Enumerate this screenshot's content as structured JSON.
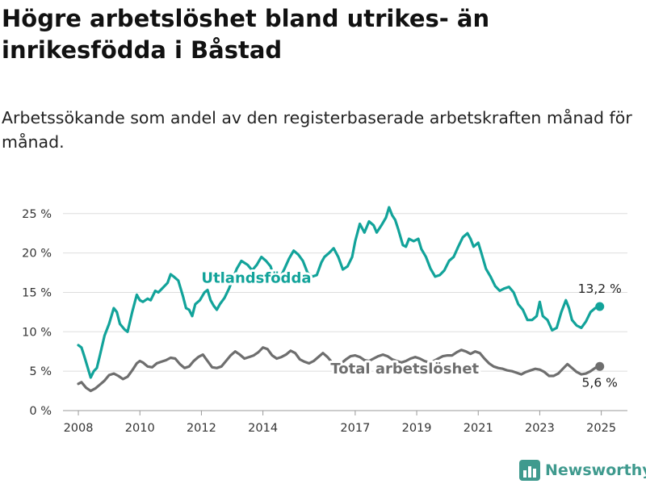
{
  "title": "Högre arbetslöshet bland utrikes- än inrikesfödda i Båstad",
  "subtitle": "Arbetssökande som andel av den registerbaserade arbetskraften månad för månad.",
  "logo_text": "Newsworthy",
  "chart_data": {
    "type": "line",
    "xlim": [
      2007.5,
      2025.85
    ],
    "ylim": [
      0,
      26
    ],
    "yticks": [
      {
        "v": 0,
        "label": "0 %"
      },
      {
        "v": 5,
        "label": "5 %"
      },
      {
        "v": 10,
        "label": "10 %"
      },
      {
        "v": 15,
        "label": "15 %"
      },
      {
        "v": 20,
        "label": "20 %"
      },
      {
        "v": 25,
        "label": "25 %"
      }
    ],
    "xticks": [
      {
        "v": 2008,
        "label": "2008"
      },
      {
        "v": 2010,
        "label": "2010"
      },
      {
        "v": 2012,
        "label": "2012"
      },
      {
        "v": 2014,
        "label": "2014"
      },
      {
        "v": 2017,
        "label": "2017"
      },
      {
        "v": 2019,
        "label": "2019"
      },
      {
        "v": 2021,
        "label": "2021"
      },
      {
        "v": 2023,
        "label": "2023"
      },
      {
        "v": 2025,
        "label": "2025"
      }
    ],
    "grid": true,
    "series": [
      {
        "name": "Utlandsfödda",
        "color": "#12a39a",
        "end_label": "13,2 %",
        "points": [
          [
            2008.0,
            8.3
          ],
          [
            2008.1,
            8.0
          ],
          [
            2008.2,
            6.8
          ],
          [
            2008.3,
            5.5
          ],
          [
            2008.4,
            4.2
          ],
          [
            2008.5,
            5.0
          ],
          [
            2008.6,
            5.4
          ],
          [
            2008.7,
            7.0
          ],
          [
            2008.85,
            9.5
          ],
          [
            2009.0,
            11.0
          ],
          [
            2009.15,
            13.0
          ],
          [
            2009.25,
            12.5
          ],
          [
            2009.35,
            11.0
          ],
          [
            2009.5,
            10.3
          ],
          [
            2009.6,
            10.0
          ],
          [
            2009.75,
            12.5
          ],
          [
            2009.9,
            14.7
          ],
          [
            2010.0,
            14.0
          ],
          [
            2010.1,
            13.8
          ],
          [
            2010.25,
            14.2
          ],
          [
            2010.35,
            14.0
          ],
          [
            2010.5,
            15.2
          ],
          [
            2010.6,
            15.0
          ],
          [
            2010.75,
            15.6
          ],
          [
            2010.9,
            16.2
          ],
          [
            2011.0,
            17.3
          ],
          [
            2011.1,
            17.0
          ],
          [
            2011.25,
            16.5
          ],
          [
            2011.4,
            14.5
          ],
          [
            2011.5,
            13.0
          ],
          [
            2011.6,
            12.8
          ],
          [
            2011.7,
            12.0
          ],
          [
            2011.8,
            13.5
          ],
          [
            2011.95,
            14.0
          ],
          [
            2012.1,
            15.0
          ],
          [
            2012.2,
            15.3
          ],
          [
            2012.3,
            14.0
          ],
          [
            2012.4,
            13.3
          ],
          [
            2012.5,
            12.8
          ],
          [
            2012.6,
            13.5
          ],
          [
            2012.75,
            14.3
          ],
          [
            2012.9,
            15.5
          ],
          [
            2013.0,
            16.5
          ],
          [
            2013.15,
            18.0
          ],
          [
            2013.3,
            19.0
          ],
          [
            2013.5,
            18.5
          ],
          [
            2013.65,
            17.8
          ],
          [
            2013.8,
            18.5
          ],
          [
            2013.95,
            19.5
          ],
          [
            2014.1,
            19.0
          ],
          [
            2014.25,
            18.3
          ],
          [
            2014.4,
            16.5
          ],
          [
            2014.55,
            16.8
          ],
          [
            2014.7,
            18.0
          ],
          [
            2014.85,
            19.3
          ],
          [
            2015.0,
            20.3
          ],
          [
            2015.15,
            19.8
          ],
          [
            2015.3,
            19.0
          ],
          [
            2015.45,
            17.5
          ],
          [
            2015.6,
            17.0
          ],
          [
            2015.75,
            17.2
          ],
          [
            2015.9,
            18.8
          ],
          [
            2016.0,
            19.5
          ],
          [
            2016.15,
            20.0
          ],
          [
            2016.3,
            20.6
          ],
          [
            2016.45,
            19.5
          ],
          [
            2016.6,
            17.9
          ],
          [
            2016.75,
            18.3
          ],
          [
            2016.9,
            19.5
          ],
          [
            2017.0,
            21.5
          ],
          [
            2017.15,
            23.7
          ],
          [
            2017.3,
            22.6
          ],
          [
            2017.45,
            24.0
          ],
          [
            2017.6,
            23.5
          ],
          [
            2017.7,
            22.6
          ],
          [
            2017.85,
            23.5
          ],
          [
            2018.0,
            24.5
          ],
          [
            2018.1,
            25.8
          ],
          [
            2018.2,
            24.8
          ],
          [
            2018.3,
            24.2
          ],
          [
            2018.4,
            23.0
          ],
          [
            2018.55,
            21.0
          ],
          [
            2018.65,
            20.8
          ],
          [
            2018.75,
            21.8
          ],
          [
            2018.9,
            21.5
          ],
          [
            2019.05,
            21.8
          ],
          [
            2019.15,
            20.5
          ],
          [
            2019.3,
            19.5
          ],
          [
            2019.45,
            18.0
          ],
          [
            2019.6,
            17.0
          ],
          [
            2019.75,
            17.2
          ],
          [
            2019.9,
            17.8
          ],
          [
            2020.05,
            19.0
          ],
          [
            2020.2,
            19.5
          ],
          [
            2020.35,
            20.8
          ],
          [
            2020.5,
            22.0
          ],
          [
            2020.65,
            22.5
          ],
          [
            2020.75,
            21.8
          ],
          [
            2020.85,
            20.8
          ],
          [
            2021.0,
            21.3
          ],
          [
            2021.1,
            20.0
          ],
          [
            2021.25,
            18.0
          ],
          [
            2021.4,
            17.0
          ],
          [
            2021.55,
            15.8
          ],
          [
            2021.7,
            15.2
          ],
          [
            2021.85,
            15.5
          ],
          [
            2022.0,
            15.7
          ],
          [
            2022.15,
            15.0
          ],
          [
            2022.3,
            13.5
          ],
          [
            2022.45,
            12.8
          ],
          [
            2022.6,
            11.5
          ],
          [
            2022.75,
            11.5
          ],
          [
            2022.9,
            12.0
          ],
          [
            2023.0,
            13.8
          ],
          [
            2023.1,
            12.0
          ],
          [
            2023.25,
            11.5
          ],
          [
            2023.4,
            10.2
          ],
          [
            2023.55,
            10.5
          ],
          [
            2023.7,
            12.5
          ],
          [
            2023.85,
            14.0
          ],
          [
            2023.95,
            13.0
          ],
          [
            2024.05,
            11.5
          ],
          [
            2024.2,
            10.8
          ],
          [
            2024.35,
            10.5
          ],
          [
            2024.5,
            11.3
          ],
          [
            2024.65,
            12.5
          ],
          [
            2024.8,
            13.0
          ],
          [
            2024.95,
            13.2
          ]
        ]
      },
      {
        "name": "Total arbetslöshet",
        "color": "#6e6e6e",
        "end_label": "5,6 %",
        "points": [
          [
            2008.0,
            3.4
          ],
          [
            2008.1,
            3.6
          ],
          [
            2008.25,
            2.9
          ],
          [
            2008.4,
            2.5
          ],
          [
            2008.55,
            2.8
          ],
          [
            2008.7,
            3.3
          ],
          [
            2008.85,
            3.8
          ],
          [
            2009.0,
            4.5
          ],
          [
            2009.15,
            4.7
          ],
          [
            2009.3,
            4.4
          ],
          [
            2009.45,
            4.0
          ],
          [
            2009.6,
            4.3
          ],
          [
            2009.75,
            5.1
          ],
          [
            2009.9,
            6.0
          ],
          [
            2010.0,
            6.3
          ],
          [
            2010.1,
            6.1
          ],
          [
            2010.25,
            5.6
          ],
          [
            2010.4,
            5.5
          ],
          [
            2010.55,
            6.0
          ],
          [
            2010.7,
            6.2
          ],
          [
            2010.85,
            6.4
          ],
          [
            2011.0,
            6.7
          ],
          [
            2011.15,
            6.6
          ],
          [
            2011.3,
            5.9
          ],
          [
            2011.45,
            5.4
          ],
          [
            2011.6,
            5.6
          ],
          [
            2011.75,
            6.3
          ],
          [
            2011.9,
            6.8
          ],
          [
            2012.05,
            7.1
          ],
          [
            2012.2,
            6.3
          ],
          [
            2012.35,
            5.5
          ],
          [
            2012.5,
            5.4
          ],
          [
            2012.65,
            5.6
          ],
          [
            2012.8,
            6.3
          ],
          [
            2012.95,
            7.0
          ],
          [
            2013.1,
            7.5
          ],
          [
            2013.25,
            7.1
          ],
          [
            2013.4,
            6.6
          ],
          [
            2013.55,
            6.8
          ],
          [
            2013.7,
            7.0
          ],
          [
            2013.85,
            7.4
          ],
          [
            2014.0,
            8.0
          ],
          [
            2014.15,
            7.8
          ],
          [
            2014.3,
            7.0
          ],
          [
            2014.45,
            6.6
          ],
          [
            2014.6,
            6.8
          ],
          [
            2014.75,
            7.1
          ],
          [
            2014.9,
            7.6
          ],
          [
            2015.05,
            7.3
          ],
          [
            2015.2,
            6.5
          ],
          [
            2015.35,
            6.2
          ],
          [
            2015.5,
            6.0
          ],
          [
            2015.65,
            6.3
          ],
          [
            2015.8,
            6.8
          ],
          [
            2015.95,
            7.3
          ],
          [
            2016.1,
            6.8
          ],
          [
            2016.25,
            6.1
          ],
          [
            2016.4,
            5.8
          ],
          [
            2016.55,
            6.0
          ],
          [
            2016.7,
            6.5
          ],
          [
            2016.85,
            6.9
          ],
          [
            2017.0,
            7.0
          ],
          [
            2017.15,
            6.8
          ],
          [
            2017.3,
            6.4
          ],
          [
            2017.45,
            6.3
          ],
          [
            2017.6,
            6.6
          ],
          [
            2017.75,
            6.9
          ],
          [
            2017.9,
            7.1
          ],
          [
            2018.05,
            6.9
          ],
          [
            2018.2,
            6.5
          ],
          [
            2018.35,
            6.3
          ],
          [
            2018.5,
            6.1
          ],
          [
            2018.65,
            6.3
          ],
          [
            2018.8,
            6.6
          ],
          [
            2018.95,
            6.8
          ],
          [
            2019.1,
            6.6
          ],
          [
            2019.25,
            6.3
          ],
          [
            2019.4,
            6.1
          ],
          [
            2019.55,
            6.3
          ],
          [
            2019.7,
            6.6
          ],
          [
            2019.85,
            6.9
          ],
          [
            2020.0,
            7.0
          ],
          [
            2020.15,
            7.0
          ],
          [
            2020.3,
            7.4
          ],
          [
            2020.45,
            7.7
          ],
          [
            2020.6,
            7.5
          ],
          [
            2020.75,
            7.2
          ],
          [
            2020.9,
            7.5
          ],
          [
            2021.05,
            7.3
          ],
          [
            2021.2,
            6.6
          ],
          [
            2021.35,
            6.0
          ],
          [
            2021.5,
            5.6
          ],
          [
            2021.65,
            5.4
          ],
          [
            2021.8,
            5.3
          ],
          [
            2021.95,
            5.1
          ],
          [
            2022.1,
            5.0
          ],
          [
            2022.25,
            4.8
          ],
          [
            2022.4,
            4.6
          ],
          [
            2022.55,
            4.9
          ],
          [
            2022.7,
            5.1
          ],
          [
            2022.85,
            5.3
          ],
          [
            2023.0,
            5.2
          ],
          [
            2023.15,
            4.9
          ],
          [
            2023.3,
            4.4
          ],
          [
            2023.45,
            4.4
          ],
          [
            2023.6,
            4.7
          ],
          [
            2023.75,
            5.3
          ],
          [
            2023.9,
            5.9
          ],
          [
            2024.05,
            5.4
          ],
          [
            2024.2,
            4.9
          ],
          [
            2024.35,
            4.6
          ],
          [
            2024.5,
            4.7
          ],
          [
            2024.65,
            5.0
          ],
          [
            2024.8,
            5.4
          ],
          [
            2024.95,
            5.6
          ]
        ]
      }
    ]
  }
}
